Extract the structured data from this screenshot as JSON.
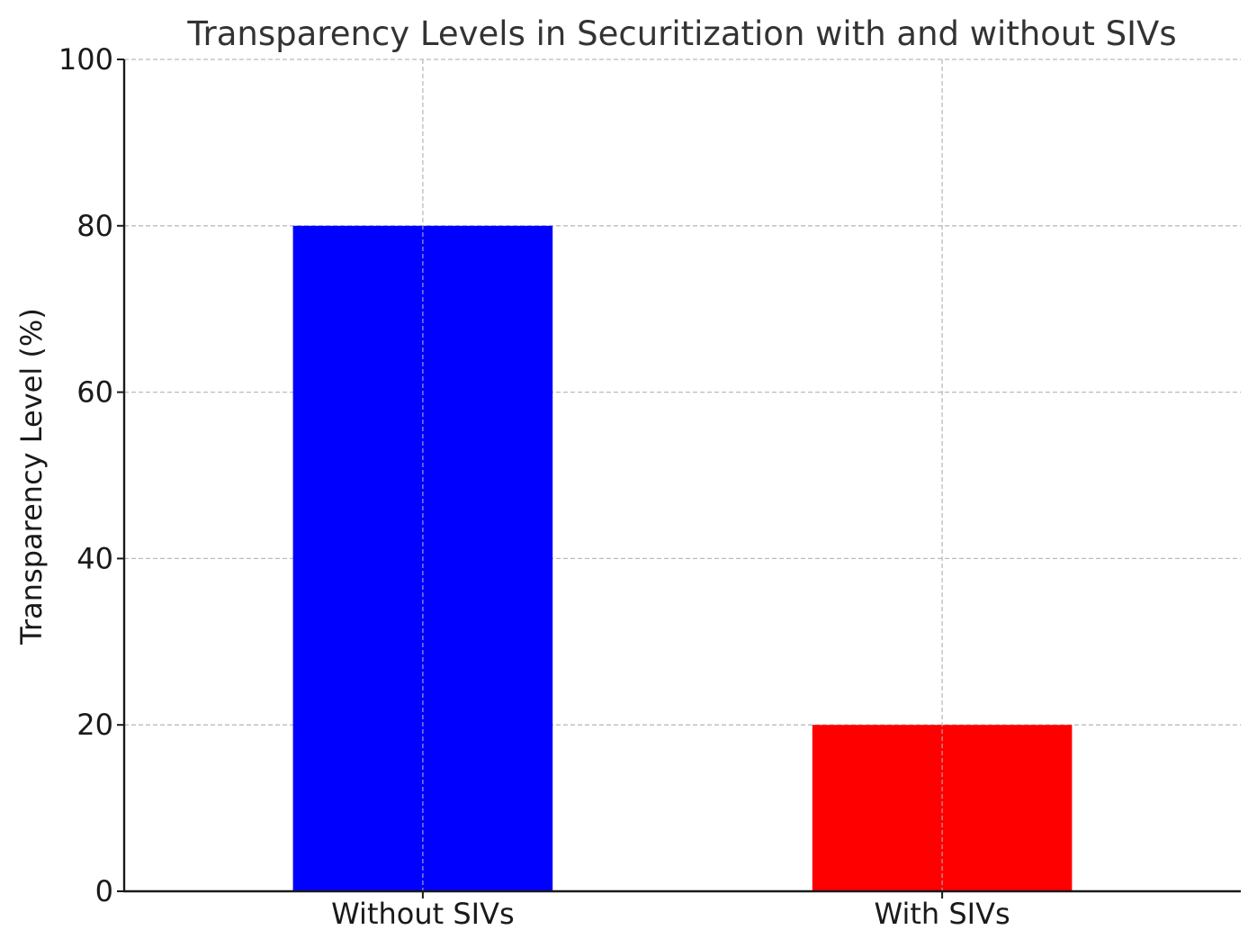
{
  "chart_data": {
    "type": "bar",
    "title": "Transparency Levels in Securitization with and without SIVs",
    "xlabel": "",
    "ylabel": "Transparency Level (%)",
    "categories": [
      "Without SIVs",
      "With SIVs"
    ],
    "values": [
      80,
      20
    ],
    "colors": [
      "#0000ff",
      "#ff0000"
    ],
    "ylim": [
      0,
      100
    ],
    "yticks": [
      0,
      20,
      40,
      60,
      80,
      100
    ],
    "grid": true
  }
}
